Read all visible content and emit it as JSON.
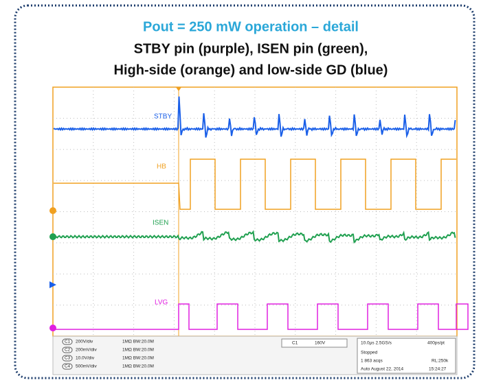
{
  "header": {
    "title": "Pout = 250 mW operation – detail",
    "subtitle_lines": [
      "STBY pin (purple), ISEN pin (green),",
      "High-side (orange) and low-side GD (blue)"
    ]
  },
  "scope": {
    "channel_labels": [
      "STBY",
      "HB",
      "ISEN",
      "LVG"
    ],
    "status": {
      "channels": [
        {
          "id": "C1",
          "scale": "200V/div",
          "coupling": "1MΩ BW:20.0M"
        },
        {
          "id": "C2",
          "scale": "200mV/div",
          "coupling": "1MΩ BW:20.0M"
        },
        {
          "id": "C3",
          "scale": "10.0V/div",
          "coupling": "1MΩ BW:20.0M"
        },
        {
          "id": "C4",
          "scale": "500mV/div",
          "coupling": "1MΩ BW:20.0M"
        }
      ],
      "trigger": {
        "source": "C1",
        "level": "160V"
      },
      "acquisition": {
        "timebase": "10.0µs  2.5GS/s",
        "resolution": "400ps/pt",
        "state": "Stopped",
        "acqs": "1 863 acqs",
        "record": "RL:250k",
        "mode_date": "Auto   August 22, 2014",
        "time": "15:24:27"
      }
    }
  }
}
